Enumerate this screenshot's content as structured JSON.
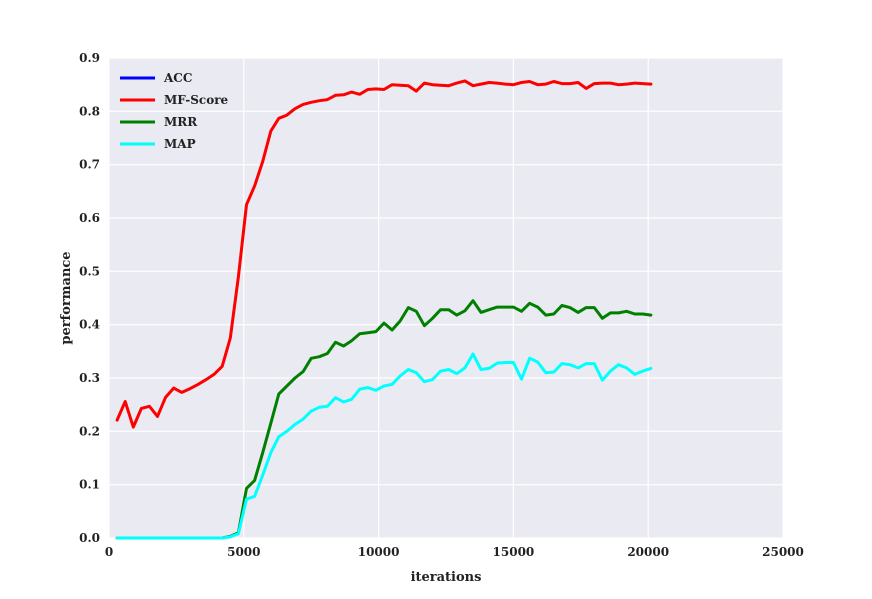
{
  "chart_data": {
    "type": "line",
    "xlabel": "iterations",
    "ylabel": "performance",
    "xlim": [
      0,
      25000
    ],
    "ylim": [
      0.0,
      0.9
    ],
    "xticks": [
      0,
      5000,
      10000,
      15000,
      20000,
      25000
    ],
    "xtick_labels": [
      "0",
      "5000",
      "10000",
      "15000",
      "20000",
      "25000"
    ],
    "yticks": [
      0.0,
      0.1,
      0.2,
      0.3,
      0.4,
      0.5,
      0.6,
      0.7,
      0.8,
      0.9
    ],
    "ytick_labels": [
      "0.0",
      "0.1",
      "0.2",
      "0.3",
      "0.4",
      "0.5",
      "0.6",
      "0.7",
      "0.8",
      "0.9"
    ],
    "grid": true,
    "legend_position": "top-left",
    "background": "#eaeaf2",
    "series": [
      {
        "name": "ACC",
        "color": "#0000ff",
        "x": [],
        "y": []
      },
      {
        "name": "MF-Score",
        "color": "#ff0000",
        "x": [
          300,
          600,
          900,
          1200,
          1500,
          1800,
          2100,
          2400,
          2700,
          3000,
          3300,
          3600,
          3900,
          4200,
          4500,
          4800,
          5100,
          5400,
          5700,
          6000,
          6300,
          6600,
          6900,
          7200,
          7500,
          7800,
          8100,
          8400,
          8700,
          9000,
          9300,
          9600,
          9900,
          10200,
          10500,
          10800,
          11100,
          11400,
          11700,
          12000,
          12300,
          12600,
          12900,
          13200,
          13500,
          13800,
          14100,
          14400,
          14700,
          15000,
          15300,
          15600,
          15900,
          16200,
          16500,
          16800,
          17100,
          17400,
          17700,
          18000,
          18300,
          18600,
          18900,
          19200,
          19500,
          19800,
          20100
        ],
        "y": [
          0.221,
          0.256,
          0.208,
          0.243,
          0.247,
          0.228,
          0.264,
          0.281,
          0.273,
          0.28,
          0.288,
          0.297,
          0.307,
          0.322,
          0.375,
          0.49,
          0.625,
          0.66,
          0.706,
          0.763,
          0.787,
          0.793,
          0.805,
          0.813,
          0.817,
          0.82,
          0.822,
          0.83,
          0.831,
          0.836,
          0.832,
          0.841,
          0.842,
          0.841,
          0.85,
          0.849,
          0.848,
          0.838,
          0.853,
          0.85,
          0.849,
          0.848,
          0.853,
          0.857,
          0.848,
          0.851,
          0.854,
          0.853,
          0.851,
          0.85,
          0.854,
          0.856,
          0.85,
          0.851,
          0.856,
          0.852,
          0.852,
          0.854,
          0.843,
          0.852,
          0.853,
          0.853,
          0.85,
          0.851,
          0.853,
          0.852,
          0.851
        ]
      },
      {
        "name": "MRR",
        "color": "#008000",
        "x": [
          300,
          600,
          900,
          1200,
          1500,
          1800,
          2100,
          2400,
          2700,
          3000,
          3300,
          3600,
          3900,
          4200,
          4500,
          4800,
          5100,
          5400,
          5700,
          6000,
          6300,
          6600,
          6900,
          7200,
          7500,
          7800,
          8100,
          8400,
          8700,
          9000,
          9300,
          9600,
          9900,
          10200,
          10500,
          10800,
          11100,
          11400,
          11700,
          12000,
          12300,
          12600,
          12900,
          13200,
          13500,
          13800,
          14100,
          14400,
          14700,
          15000,
          15300,
          15600,
          15900,
          16200,
          16500,
          16800,
          17100,
          17400,
          17700,
          18000,
          18300,
          18600,
          18900,
          19200,
          19500,
          19800,
          20100
        ],
        "y": [
          0.0,
          0.0,
          0.0,
          0.0,
          0.0,
          0.0,
          0.0,
          0.0,
          0.0,
          0.0,
          0.0,
          0.0,
          0.0,
          0.0,
          0.003,
          0.01,
          0.093,
          0.108,
          0.16,
          0.215,
          0.27,
          0.285,
          0.3,
          0.312,
          0.337,
          0.34,
          0.346,
          0.367,
          0.36,
          0.37,
          0.383,
          0.385,
          0.387,
          0.403,
          0.39,
          0.407,
          0.432,
          0.425,
          0.398,
          0.412,
          0.428,
          0.428,
          0.418,
          0.426,
          0.445,
          0.423,
          0.428,
          0.433,
          0.433,
          0.433,
          0.425,
          0.44,
          0.433,
          0.418,
          0.42,
          0.436,
          0.432,
          0.423,
          0.432,
          0.432,
          0.412,
          0.422,
          0.422,
          0.425,
          0.42,
          0.42,
          0.418
        ]
      },
      {
        "name": "MAP",
        "color": "#00ffff",
        "x": [
          300,
          600,
          900,
          1200,
          1500,
          1800,
          2100,
          2400,
          2700,
          3000,
          3300,
          3600,
          3900,
          4200,
          4500,
          4800,
          5100,
          5400,
          5700,
          6000,
          6300,
          6600,
          6900,
          7200,
          7500,
          7800,
          8100,
          8400,
          8700,
          9000,
          9300,
          9600,
          9900,
          10200,
          10500,
          10800,
          11100,
          11400,
          11700,
          12000,
          12300,
          12600,
          12900,
          13200,
          13500,
          13800,
          14100,
          14400,
          14700,
          15000,
          15300,
          15600,
          15900,
          16200,
          16500,
          16800,
          17100,
          17400,
          17700,
          18000,
          18300,
          18600,
          18900,
          19200,
          19500,
          19800,
          20100
        ],
        "y": [
          0.0,
          0.0,
          0.0,
          0.0,
          0.0,
          0.0,
          0.0,
          0.0,
          0.0,
          0.0,
          0.0,
          0.0,
          0.0,
          0.0,
          0.002,
          0.008,
          0.073,
          0.078,
          0.118,
          0.16,
          0.19,
          0.2,
          0.213,
          0.223,
          0.238,
          0.245,
          0.247,
          0.263,
          0.255,
          0.26,
          0.279,
          0.282,
          0.277,
          0.285,
          0.288,
          0.304,
          0.316,
          0.31,
          0.293,
          0.297,
          0.313,
          0.316,
          0.308,
          0.319,
          0.345,
          0.316,
          0.318,
          0.328,
          0.329,
          0.329,
          0.298,
          0.337,
          0.33,
          0.31,
          0.311,
          0.327,
          0.325,
          0.319,
          0.327,
          0.327,
          0.296,
          0.313,
          0.325,
          0.319,
          0.307,
          0.313,
          0.318
        ]
      }
    ]
  }
}
